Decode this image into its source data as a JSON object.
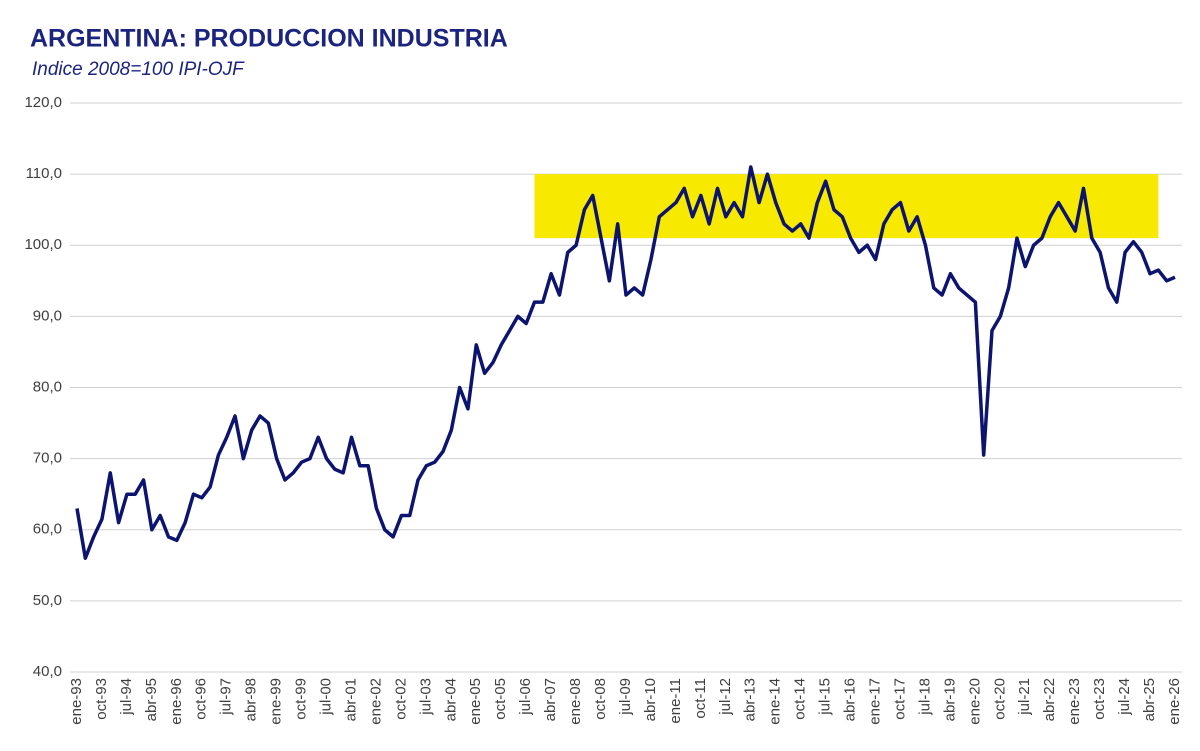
{
  "chart_data": {
    "type": "line",
    "title": "ARGENTINA:  PRODUCCION  INDUSTRIA",
    "subtitle": "Indice 2008=100 IPI-OJF",
    "categories": [
      "ene-93",
      null,
      null,
      "oct-93",
      null,
      null,
      "jul-94",
      null,
      null,
      "abr-95",
      null,
      null,
      "ene-96",
      null,
      null,
      "oct-96",
      null,
      null,
      "jul-97",
      null,
      null,
      "abr-98",
      null,
      null,
      "ene-99",
      null,
      null,
      "oct-99",
      null,
      null,
      "jul-00",
      null,
      null,
      "abr-01",
      null,
      null,
      "ene-02",
      null,
      null,
      "oct-02",
      null,
      null,
      "jul-03",
      null,
      null,
      "abr-04",
      null,
      null,
      "ene-05",
      null,
      null,
      "oct-05",
      null,
      null,
      "jul-06",
      null,
      null,
      "abr-07",
      null,
      null,
      "ene-08",
      null,
      null,
      "oct-08",
      null,
      null,
      "jul-09",
      null,
      null,
      "abr-10",
      null,
      null,
      "ene-11",
      null,
      null,
      "oct-11",
      null,
      null,
      "jul-12",
      null,
      null,
      "abr-13",
      null,
      null,
      "ene-14",
      null,
      null,
      "oct-14",
      null,
      null,
      "jul-15",
      null,
      null,
      "abr-16",
      null,
      null,
      "ene-17",
      null,
      null,
      "oct-17",
      null,
      null,
      "jul-18",
      null,
      null,
      "abr-19",
      null,
      null,
      "ene-20",
      null,
      null,
      "oct-20",
      null,
      null,
      "jul-21",
      null,
      null,
      "abr-22",
      null,
      null,
      "ene-23",
      null,
      null,
      "oct-23",
      null,
      null,
      "jul-24",
      null,
      null,
      "abr-25",
      null,
      null,
      "ene-26"
    ],
    "series": [
      {
        "name": "IPI-OJF",
        "color": "#0c1470",
        "values": [
          63,
          56,
          59,
          61.5,
          68,
          61,
          65,
          65,
          67,
          60,
          62,
          59,
          58.5,
          61,
          65,
          64.5,
          66,
          70.5,
          73,
          76,
          70,
          74,
          76,
          75,
          70,
          67,
          68,
          69.5,
          70,
          73,
          70,
          68.5,
          68,
          73,
          69,
          69,
          63,
          60,
          59,
          62,
          62,
          67,
          69,
          69.5,
          71,
          74,
          80,
          77,
          86,
          82,
          83.5,
          86,
          88,
          90,
          89,
          92,
          92,
          96,
          93,
          99,
          100,
          105,
          107,
          101,
          95,
          103,
          93,
          94,
          93,
          98,
          104,
          105,
          106,
          108,
          104,
          107,
          103,
          108,
          104,
          106,
          104,
          111,
          106,
          110,
          106,
          103,
          102,
          103,
          101,
          106,
          109,
          105,
          104,
          101,
          99,
          100,
          98,
          103,
          105,
          106,
          102,
          104,
          100,
          94,
          93,
          96,
          94,
          93,
          92,
          70.5,
          88,
          90,
          94,
          101,
          97,
          100,
          101,
          104,
          106,
          104,
          102,
          108,
          101,
          99,
          94,
          92,
          99,
          100.5,
          99,
          96,
          96.5,
          95,
          95.5
        ]
      }
    ],
    "highlight": {
      "color": "#f7ea00",
      "yrange": [
        101,
        110
      ],
      "xrange": [
        55,
        130
      ]
    },
    "ylim": [
      40,
      120
    ],
    "yticks": [
      {
        "value": 40,
        "label": "40,0"
      },
      {
        "value": 50,
        "label": "50,0"
      },
      {
        "value": 60,
        "label": "60,0"
      },
      {
        "value": 70,
        "label": "70,0"
      },
      {
        "value": 80,
        "label": "80,0"
      },
      {
        "value": 90,
        "label": "90,0"
      },
      {
        "value": 100,
        "label": "100,0"
      },
      {
        "value": 110,
        "label": "110,0"
      },
      {
        "value": 120,
        "label": "120,0"
      }
    ],
    "grid": true
  }
}
